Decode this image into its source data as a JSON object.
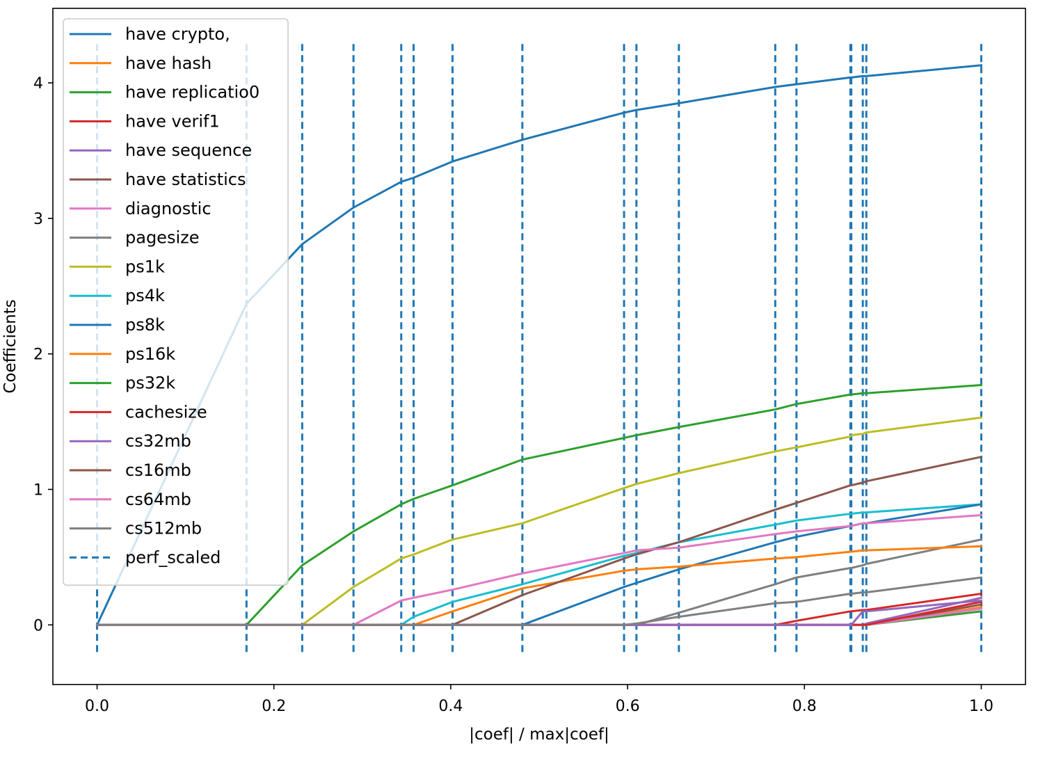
{
  "chart_data": {
    "type": "line",
    "title": "",
    "xlabel": "|coef| / max|coef|",
    "ylabel": "Coefficients",
    "xlim": [
      -0.05,
      1.05
    ],
    "ylim": [
      -0.44,
      4.55
    ],
    "xticks": [
      0.0,
      0.2,
      0.4,
      0.6,
      0.8,
      1.0
    ],
    "xtick_labels": [
      "0.0",
      "0.2",
      "0.4",
      "0.6",
      "0.8",
      "1.0"
    ],
    "yticks": [
      0,
      1,
      2,
      3,
      4
    ],
    "ytick_labels": [
      "0",
      "1",
      "2",
      "3",
      "4"
    ],
    "legend_position": "top-left",
    "x": [
      0.0,
      0.169,
      0.232,
      0.29,
      0.344,
      0.358,
      0.402,
      0.481,
      0.596,
      0.61,
      0.658,
      0.767,
      0.791,
      0.852,
      0.853,
      0.866,
      0.87,
      1.0
    ],
    "series": [
      {
        "name": "have crypto,",
        "color": "#1f77b4",
        "values": [
          0,
          2.37,
          2.81,
          3.08,
          3.27,
          3.3,
          3.42,
          3.58,
          3.78,
          3.8,
          3.85,
          3.97,
          3.99,
          4.04,
          4.04,
          4.05,
          4.05,
          4.13
        ]
      },
      {
        "name": "have hash",
        "color": "#ff7f0e",
        "values": [
          0,
          0,
          0,
          0,
          0,
          0,
          0,
          0,
          0,
          0,
          0,
          0,
          0,
          0,
          0,
          0,
          0,
          0.13
        ]
      },
      {
        "name": "have replicatio0",
        "color": "#2ca02c",
        "values": [
          0,
          0,
          0,
          0,
          0,
          0,
          0,
          0,
          0,
          0,
          0,
          0,
          0,
          0,
          0,
          0,
          0,
          0.1
        ]
      },
      {
        "name": "have verif1",
        "color": "#d62728",
        "values": [
          0,
          0,
          0,
          0,
          0,
          0,
          0,
          0,
          0,
          0,
          0,
          0,
          0.03,
          0.1,
          0.1,
          0.11,
          0.11,
          0.23
        ]
      },
      {
        "name": "have sequence",
        "color": "#9467bd",
        "values": [
          0,
          0,
          0,
          0,
          0,
          0,
          0,
          0,
          0,
          0,
          0,
          0,
          0,
          0,
          0,
          0,
          0.01,
          0.2
        ]
      },
      {
        "name": "have statistics",
        "color": "#8c564b",
        "values": [
          0,
          0,
          0,
          0,
          0,
          0,
          0,
          0,
          0,
          0,
          0,
          0,
          0,
          0,
          0,
          0,
          0,
          0.15
        ]
      },
      {
        "name": "diagnostic",
        "color": "#e377c2",
        "values": [
          0,
          0,
          0,
          0,
          0,
          0,
          0,
          0,
          0,
          0,
          0,
          0,
          0,
          0,
          0,
          0,
          0,
          0.12
        ]
      },
      {
        "name": "pagesize",
        "color": "#7f7f7f",
        "values": [
          0,
          0,
          0,
          0,
          0,
          0,
          0,
          0,
          0,
          0,
          0.09,
          0.3,
          0.35,
          0.42,
          0.42,
          0.44,
          0.45,
          0.63
        ]
      },
      {
        "name": "ps1k",
        "color": "#bcbd22",
        "values": [
          0,
          0,
          0,
          0.28,
          0.49,
          0.52,
          0.63,
          0.75,
          1.01,
          1.04,
          1.12,
          1.28,
          1.31,
          1.39,
          1.4,
          1.41,
          1.42,
          1.53
        ]
      },
      {
        "name": "ps4k",
        "color": "#17becf",
        "values": [
          0,
          0,
          0,
          0,
          0,
          0.06,
          0.17,
          0.3,
          0.51,
          0.53,
          0.61,
          0.74,
          0.77,
          0.82,
          0.82,
          0.83,
          0.83,
          0.89
        ]
      },
      {
        "name": "ps8k",
        "color": "#1f77b4",
        "values": [
          0,
          0,
          0,
          0,
          0,
          0,
          0,
          0,
          0.28,
          0.31,
          0.41,
          0.61,
          0.65,
          0.73,
          0.73,
          0.75,
          0.75,
          0.89
        ]
      },
      {
        "name": "ps16k",
        "color": "#ff7f0e",
        "values": [
          0,
          0,
          0,
          0,
          0,
          0,
          0.1,
          0.27,
          0.4,
          0.41,
          0.43,
          0.49,
          0.5,
          0.54,
          0.54,
          0.55,
          0.55,
          0.58
        ]
      },
      {
        "name": "ps32k",
        "color": "#2ca02c",
        "values": [
          0,
          0,
          0.44,
          0.69,
          0.89,
          0.93,
          1.03,
          1.22,
          1.38,
          1.4,
          1.46,
          1.59,
          1.63,
          1.7,
          1.7,
          1.71,
          1.71,
          1.77
        ]
      },
      {
        "name": "cachesize",
        "color": "#d62728",
        "values": [
          0,
          0,
          0,
          0,
          0,
          0,
          0,
          0,
          0,
          0,
          0,
          0,
          0,
          0,
          0,
          0,
          0,
          0.17
        ]
      },
      {
        "name": "cs32mb",
        "color": "#9467bd",
        "values": [
          0,
          0,
          0,
          0,
          0,
          0,
          0,
          0,
          0,
          0,
          0,
          0,
          0,
          0,
          0,
          0.1,
          0.1,
          0.18
        ]
      },
      {
        "name": "cs16mb",
        "color": "#8c564b",
        "values": [
          0,
          0,
          0,
          0,
          0,
          0,
          0,
          0.22,
          0.49,
          0.52,
          0.61,
          0.85,
          0.9,
          1.03,
          1.03,
          1.05,
          1.06,
          1.24
        ]
      },
      {
        "name": "cs64mb",
        "color": "#e377c2",
        "values": [
          0,
          0,
          0,
          0,
          0.18,
          0.2,
          0.26,
          0.38,
          0.53,
          0.55,
          0.57,
          0.67,
          0.69,
          0.73,
          0.73,
          0.75,
          0.75,
          0.81
        ]
      },
      {
        "name": "cs512mb",
        "color": "#7f7f7f",
        "values": [
          0,
          0,
          0,
          0,
          0,
          0,
          0,
          0,
          0,
          0.01,
          0.06,
          0.16,
          0.17,
          0.23,
          0.23,
          0.24,
          0.24,
          0.35
        ]
      }
    ],
    "vlines": {
      "name": "perf_scaled",
      "color": "#1f77b4",
      "style": "dashed",
      "x": [
        0.0,
        0.169,
        0.232,
        0.29,
        0.344,
        0.358,
        0.402,
        0.481,
        0.596,
        0.61,
        0.658,
        0.767,
        0.791,
        0.852,
        0.853,
        0.866,
        0.87,
        1.0
      ],
      "ymin": -0.2,
      "ymax": 4.3
    }
  }
}
